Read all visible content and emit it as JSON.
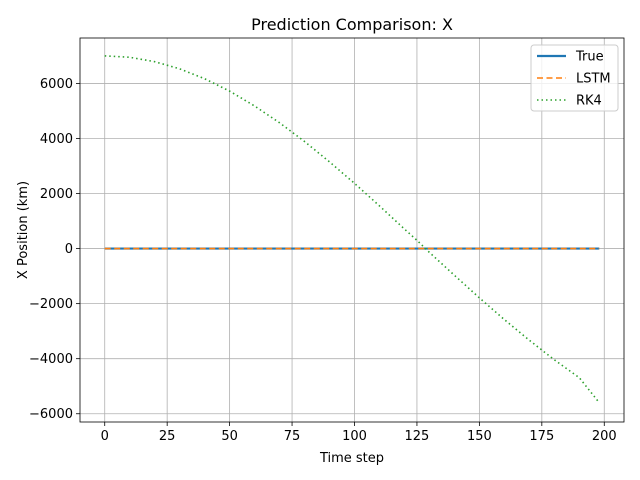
{
  "chart_data": {
    "type": "line",
    "title": "Prediction Comparison: X",
    "xlabel": "Time step",
    "ylabel": "X Position (km)",
    "xlim": [
      -9.9,
      207.9
    ],
    "ylim": [
      -6300,
      7650
    ],
    "xticks": [
      0,
      25,
      50,
      75,
      100,
      125,
      150,
      175,
      200
    ],
    "yticks": [
      -6000,
      -4000,
      -2000,
      0,
      2000,
      4000,
      6000
    ],
    "grid": true,
    "legend_position": "top-right",
    "series": [
      {
        "name": "True",
        "color": "#1f77b4",
        "style": "solid",
        "x": [
          0,
          198
        ],
        "y": [
          0,
          0
        ]
      },
      {
        "name": "LSTM",
        "color": "#ff7f0e",
        "style": "dashed",
        "x": [
          0,
          198
        ],
        "y": [
          0,
          0
        ]
      },
      {
        "name": "RK4",
        "color": "#2ca02c",
        "style": "dotted",
        "x": [
          0,
          10,
          20,
          30,
          40,
          50,
          60,
          70,
          80,
          90,
          100,
          110,
          120,
          125,
          130,
          140,
          150,
          160,
          170,
          180,
          190,
          198
        ],
        "y": [
          7000,
          6950,
          6790,
          6530,
          6170,
          5720,
          5180,
          4570,
          3890,
          3150,
          2370,
          1550,
          710,
          300,
          -140,
          -970,
          -1790,
          -2580,
          -3330,
          -4040,
          -4690,
          -5600
        ]
      }
    ]
  }
}
